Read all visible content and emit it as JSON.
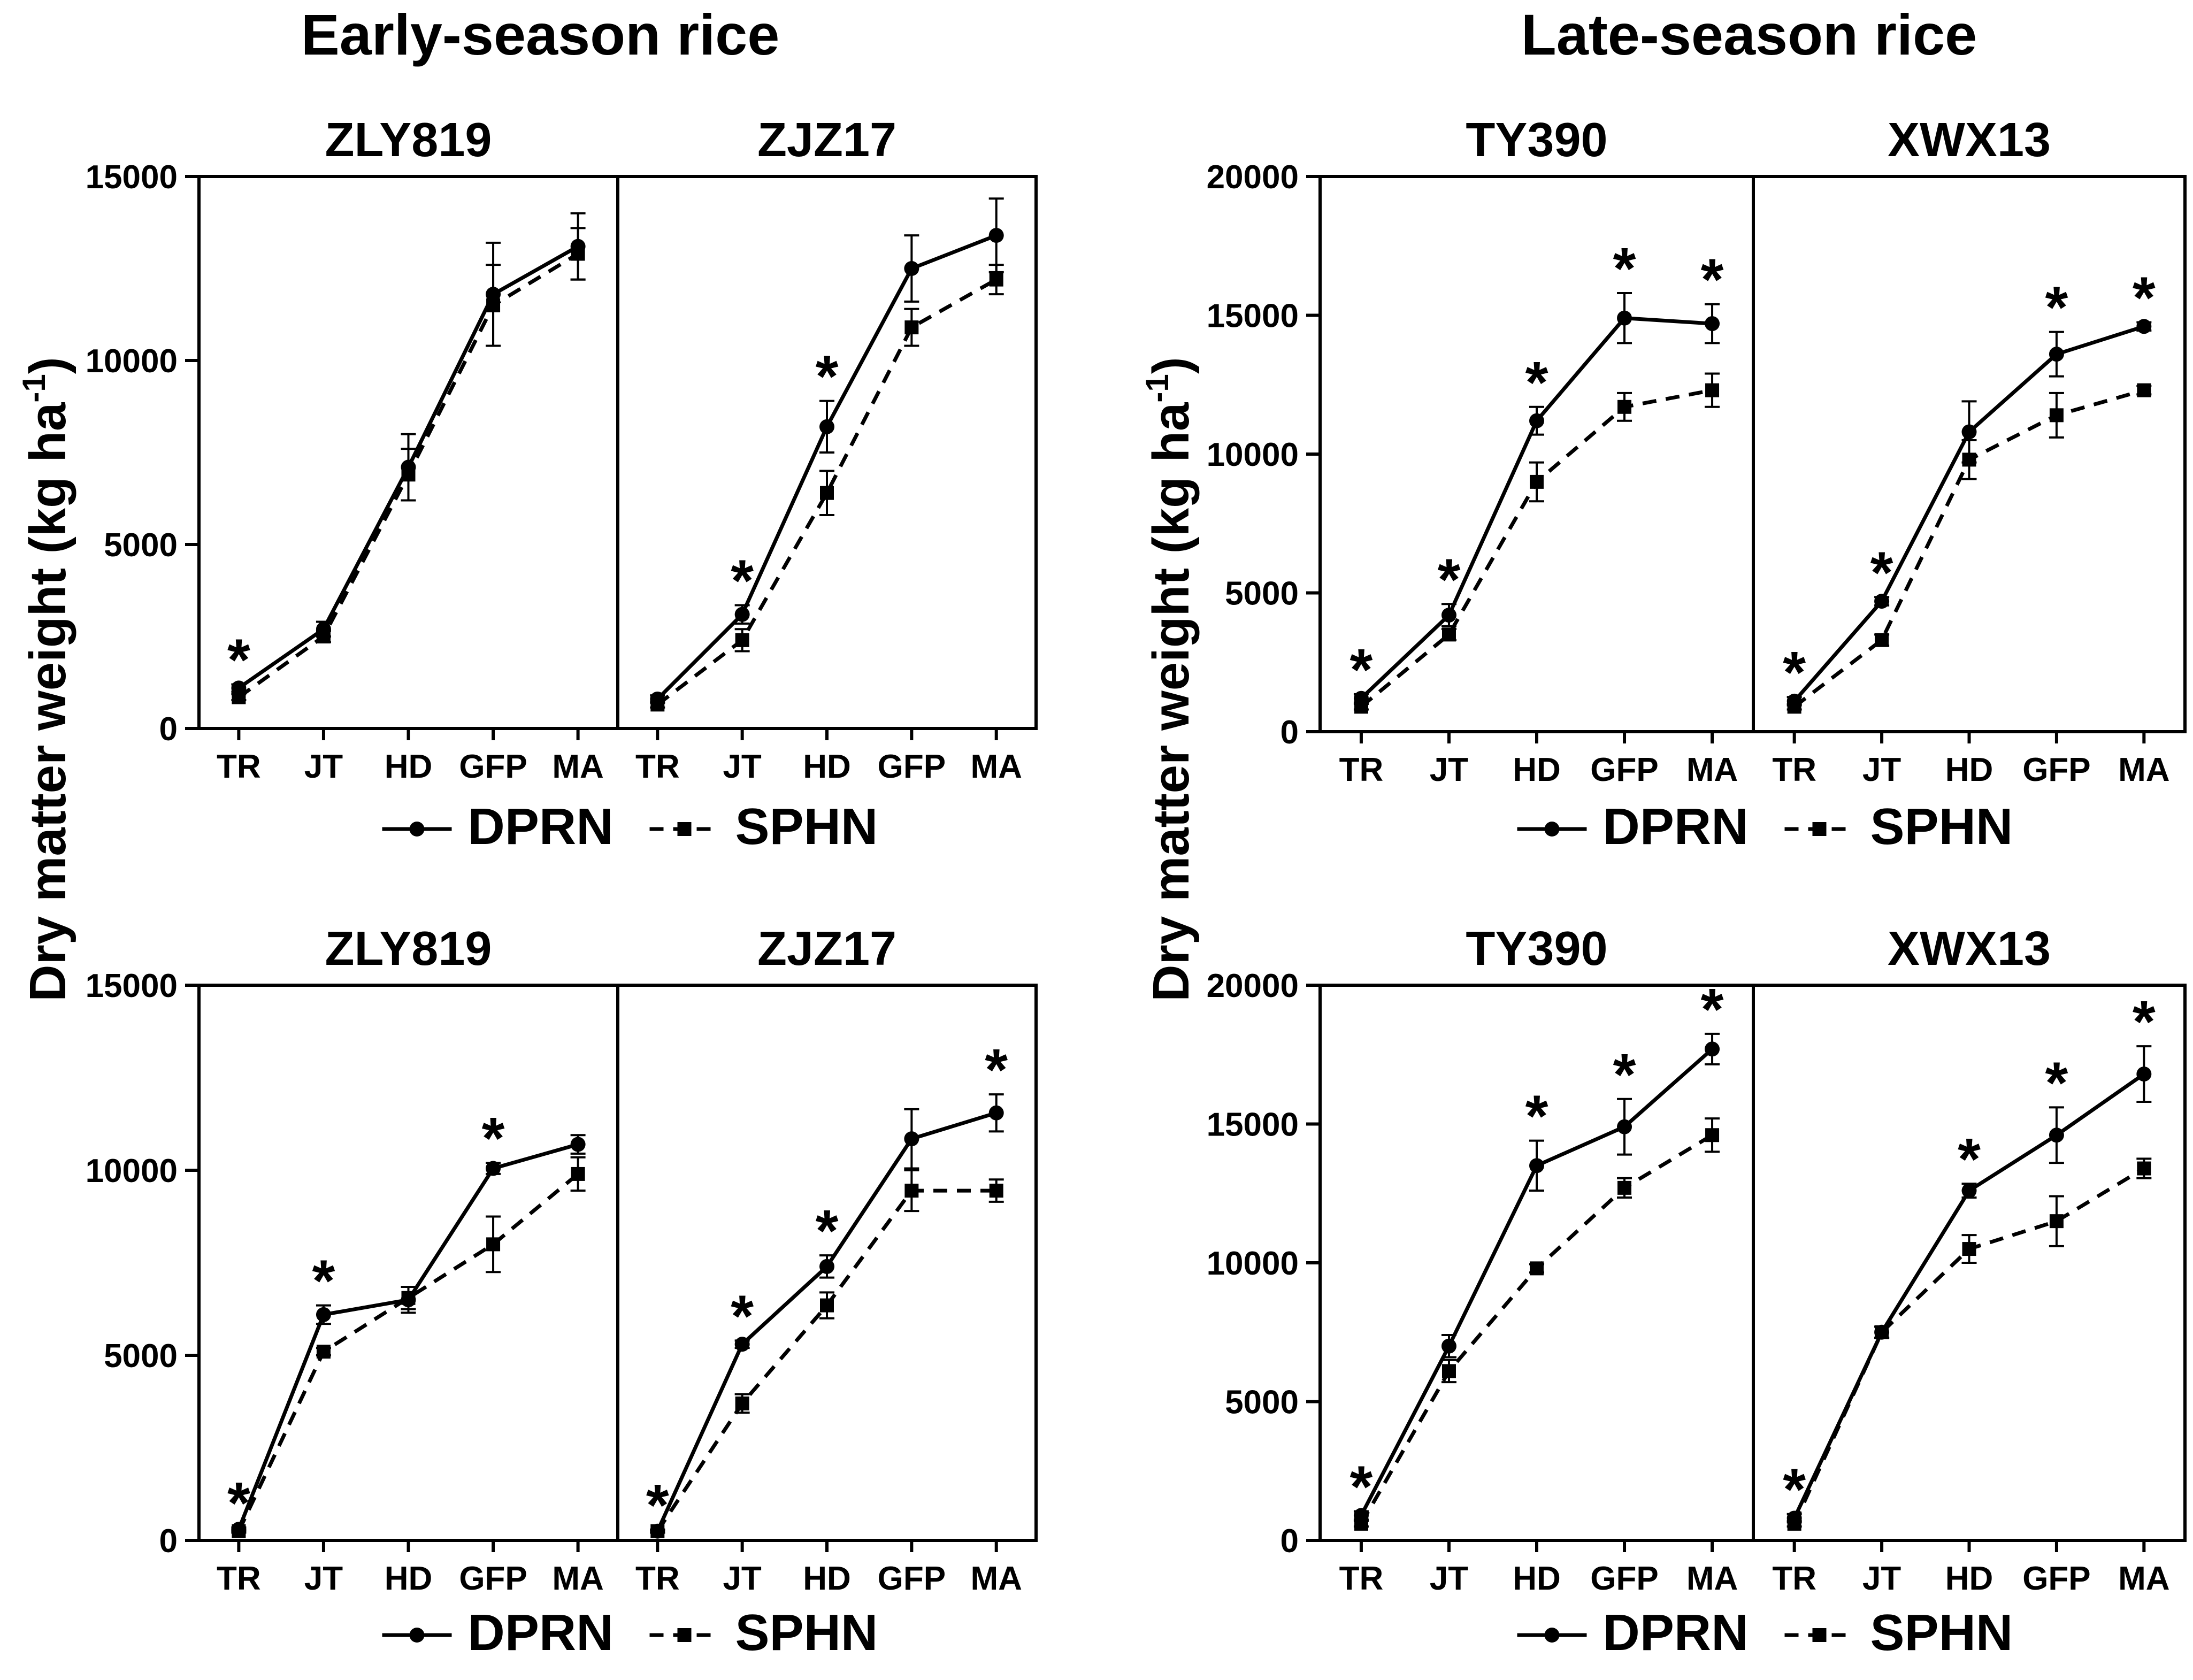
{
  "figure": {
    "ylabel": "Dry matter weight (kg ha",
    "ylabel_sup": "-1",
    "ylabel_close": ")",
    "stage_labels": [
      "TR",
      "JT",
      "HD",
      "GFP",
      "MA"
    ],
    "legend": {
      "solid_label": "DPRN",
      "dashed_label": "SPHN"
    },
    "sig_marker": "*",
    "colors": {
      "line": "#000000",
      "background": "#ffffff"
    }
  },
  "headers": {
    "early": "Early-season rice",
    "late": "Late-season rice"
  },
  "chart_data": [
    {
      "type": "line",
      "group": "early-top",
      "title_left": "ZLY819",
      "title_right": "ZJZ17",
      "ylim": [
        0,
        15000
      ],
      "yticks": [
        "0",
        "5000",
        "10000",
        "15000"
      ],
      "ytick_values": [
        0,
        5000,
        10000,
        15000
      ],
      "panels": [
        {
          "name": "ZLY819",
          "categories": [
            "TR",
            "JT",
            "HD",
            "GFP",
            "MA"
          ],
          "series": [
            {
              "name": "DPRN",
              "values": [
                1100,
                2700,
                7100,
                11800,
                13100
              ],
              "errors": [
                100,
                200,
                900,
                1400,
                900
              ]
            },
            {
              "name": "SPHN",
              "values": [
                850,
                2500,
                6900,
                11500,
                12900
              ],
              "errors": [
                80,
                150,
                700,
                1100,
                700
              ]
            }
          ],
          "significant": [
            true,
            false,
            false,
            false,
            false
          ]
        },
        {
          "name": "ZJZ17",
          "categories": [
            "TR",
            "JT",
            "HD",
            "GFP",
            "MA"
          ],
          "series": [
            {
              "name": "DPRN",
              "values": [
                800,
                3100,
                8200,
                12500,
                13400
              ],
              "errors": [
                100,
                250,
                700,
                900,
                1000
              ]
            },
            {
              "name": "SPHN",
              "values": [
                650,
                2400,
                6400,
                10900,
                12200
              ],
              "errors": [
                80,
                300,
                600,
                500,
                400
              ]
            }
          ],
          "significant": [
            false,
            true,
            true,
            false,
            false
          ]
        }
      ]
    },
    {
      "type": "line",
      "group": "late-top",
      "title_left": "TY390",
      "title_right": "XWX13",
      "ylim": [
        0,
        20000
      ],
      "yticks": [
        "0",
        "5000",
        "10000",
        "15000",
        "20000"
      ],
      "ytick_values": [
        0,
        5000,
        10000,
        15000,
        20000
      ],
      "panels": [
        {
          "name": "TY390",
          "categories": [
            "TR",
            "JT",
            "HD",
            "GFP",
            "MA"
          ],
          "series": [
            {
              "name": "DPRN",
              "values": [
                1200,
                4200,
                11200,
                14900,
                14700
              ],
              "errors": [
                150,
                400,
                500,
                900,
                700
              ]
            },
            {
              "name": "SPHN",
              "values": [
                900,
                3500,
                9000,
                11700,
                12300
              ],
              "errors": [
                100,
                200,
                700,
                500,
                600
              ]
            }
          ],
          "significant": [
            true,
            true,
            true,
            true,
            true
          ]
        },
        {
          "name": "XWX13",
          "categories": [
            "TR",
            "JT",
            "HD",
            "GFP",
            "MA"
          ],
          "series": [
            {
              "name": "DPRN",
              "values": [
                1100,
                4700,
                10800,
                13600,
                14600
              ],
              "errors": [
                150,
                150,
                1100,
                800,
                150
              ]
            },
            {
              "name": "SPHN",
              "values": [
                900,
                3300,
                9800,
                11400,
                12300
              ],
              "errors": [
                100,
                200,
                700,
                800,
                150
              ]
            }
          ],
          "significant": [
            true,
            true,
            false,
            true,
            true
          ]
        }
      ]
    },
    {
      "type": "line",
      "group": "early-bottom",
      "title_left": "ZLY819",
      "title_right": "ZJZ17",
      "ylim": [
        0,
        15000
      ],
      "yticks": [
        "0",
        "5000",
        "10000",
        "15000"
      ],
      "ytick_values": [
        0,
        5000,
        10000,
        15000
      ],
      "panels": [
        {
          "name": "ZLY819",
          "categories": [
            "TR",
            "JT",
            "HD",
            "GFP",
            "MA"
          ],
          "series": [
            {
              "name": "DPRN",
              "values": [
                300,
                6100,
                6500,
                10050,
                10700
              ],
              "errors": [
                50,
                250,
                350,
                150,
                250
              ]
            },
            {
              "name": "SPHN",
              "values": [
                250,
                5100,
                6550,
                8000,
                9900
              ],
              "errors": [
                40,
                100,
                300,
                750,
                450
              ]
            }
          ],
          "significant": [
            true,
            true,
            false,
            true,
            false
          ]
        },
        {
          "name": "ZJZ17",
          "categories": [
            "TR",
            "JT",
            "HD",
            "GFP",
            "MA"
          ],
          "series": [
            {
              "name": "DPRN",
              "values": [
                250,
                5300,
                7400,
                10850,
                11550
              ],
              "errors": [
                40,
                100,
                300,
                800,
                500
              ]
            },
            {
              "name": "SPHN",
              "values": [
                250,
                3700,
                6350,
                9450,
                9450
              ],
              "errors": [
                40,
                250,
                350,
                550,
                300
              ]
            }
          ],
          "significant": [
            true,
            true,
            true,
            false,
            true
          ]
        }
      ]
    },
    {
      "type": "line",
      "group": "late-bottom",
      "title_left": "TY390",
      "title_right": "XWX13",
      "ylim": [
        0,
        20000
      ],
      "yticks": [
        "0",
        "5000",
        "10000",
        "15000",
        "20000"
      ],
      "ytick_values": [
        0,
        5000,
        10000,
        15000,
        20000
      ],
      "panels": [
        {
          "name": "TY390",
          "categories": [
            "TR",
            "JT",
            "HD",
            "GFP",
            "MA"
          ],
          "series": [
            {
              "name": "DPRN",
              "values": [
                900,
                7000,
                13500,
                14900,
                17700
              ],
              "errors": [
                150,
                400,
                900,
                1000,
                550
              ]
            },
            {
              "name": "SPHN",
              "values": [
                600,
                6100,
                9800,
                12700,
                14600
              ],
              "errors": [
                100,
                400,
                150,
                350,
                600
              ]
            }
          ],
          "significant": [
            true,
            false,
            true,
            true,
            true
          ]
        },
        {
          "name": "XWX13",
          "categories": [
            "TR",
            "JT",
            "HD",
            "GFP",
            "MA"
          ],
          "series": [
            {
              "name": "DPRN",
              "values": [
                800,
                7500,
                12600,
                14600,
                16800
              ],
              "errors": [
                150,
                200,
                250,
                1000,
                1000
              ]
            },
            {
              "name": "SPHN",
              "values": [
                600,
                7500,
                10500,
                11500,
                13400
              ],
              "errors": [
                100,
                200,
                500,
                900,
                350
              ]
            }
          ],
          "significant": [
            true,
            false,
            true,
            true,
            true
          ]
        }
      ]
    }
  ]
}
